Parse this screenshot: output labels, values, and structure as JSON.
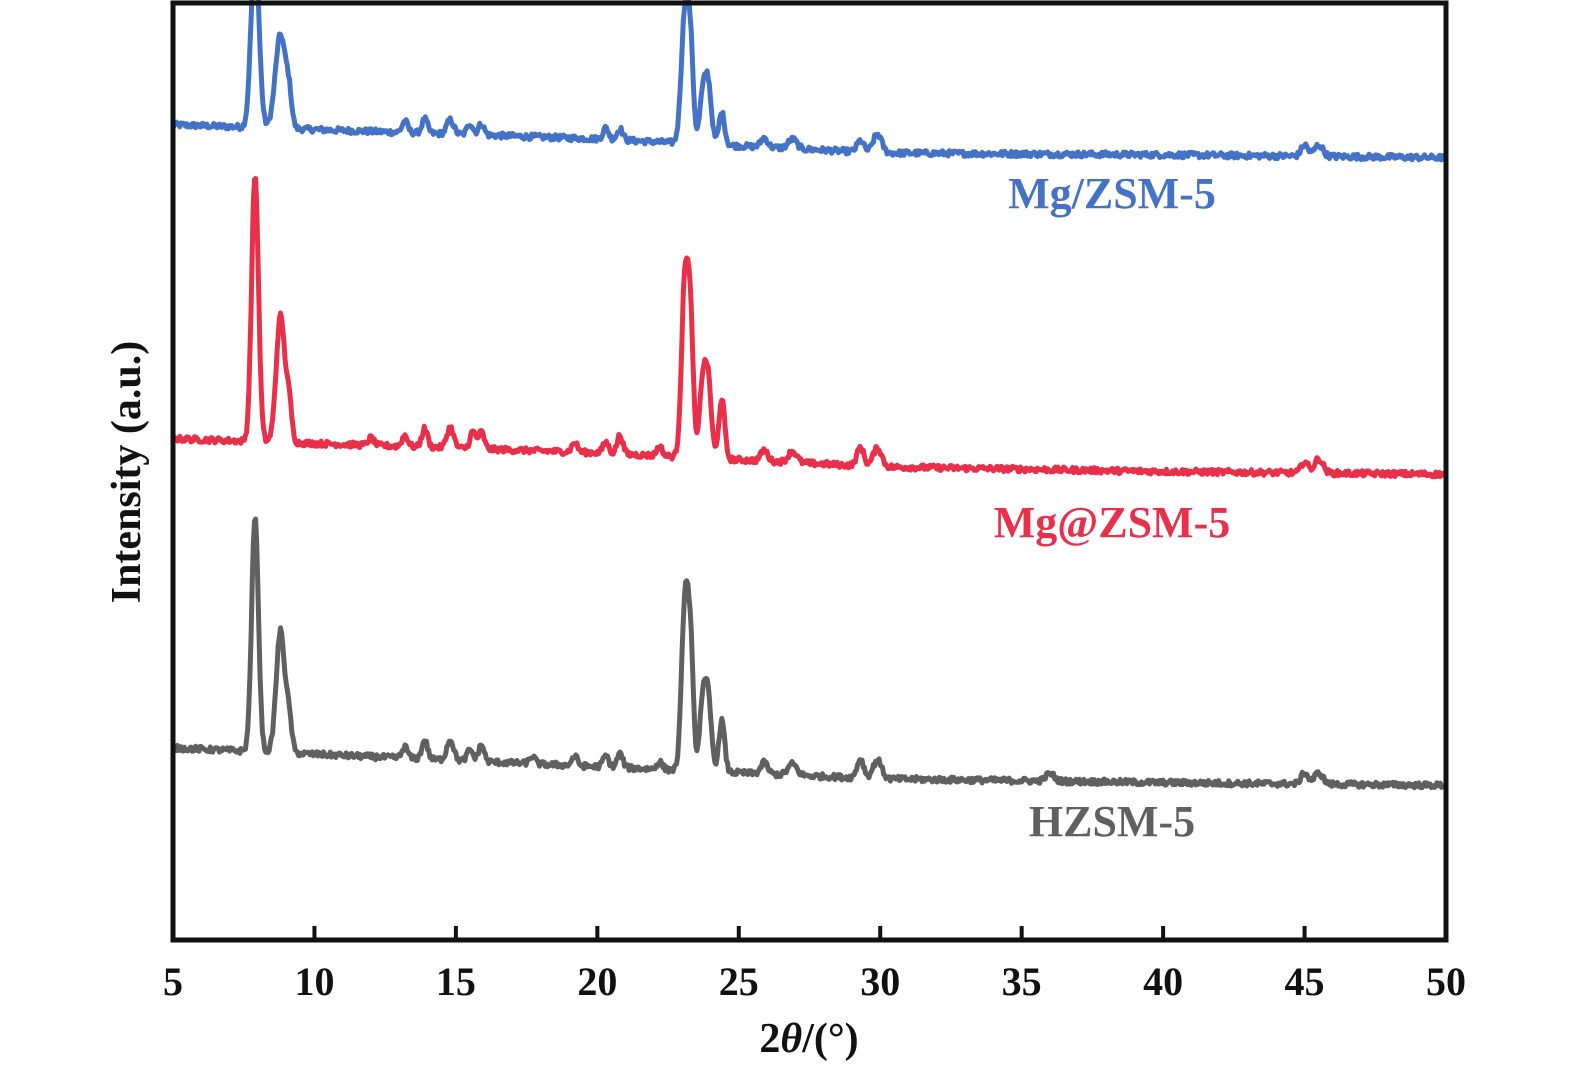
{
  "chart_data": {
    "type": "line",
    "title": "",
    "xlabel_prefix": "2",
    "xlabel_theta": "θ",
    "xlabel_suffix": "/(°)",
    "ylabel": "Intensity (a.u.)",
    "xlim": [
      5,
      50
    ],
    "xticks": [
      "5",
      "10",
      "15",
      "20",
      "25",
      "30",
      "35",
      "40",
      "45",
      "50"
    ],
    "yticks": [],
    "grid": false,
    "legend": "inline labels right of peaks",
    "series": [
      {
        "name": "Mg/ZSM-5",
        "color": "#4472c4",
        "baseline": [
          [
            5,
            0.87
          ],
          [
            20,
            0.855
          ],
          [
            30,
            0.84
          ],
          [
            40,
            0.838
          ],
          [
            50,
            0.835
          ]
        ],
        "peaks": [
          [
            7.9,
            0.19,
            0.14
          ],
          [
            8.8,
            0.1,
            0.18
          ],
          [
            9.1,
            0.03,
            0.1
          ],
          [
            13.2,
            0.012,
            0.1
          ],
          [
            13.9,
            0.015,
            0.1
          ],
          [
            14.8,
            0.015,
            0.12
          ],
          [
            15.5,
            0.012,
            0.1
          ],
          [
            15.9,
            0.012,
            0.1
          ],
          [
            20.3,
            0.012,
            0.1
          ],
          [
            20.8,
            0.012,
            0.1
          ],
          [
            23.1,
            0.14,
            0.13
          ],
          [
            23.3,
            0.085,
            0.1
          ],
          [
            23.7,
            0.04,
            0.1
          ],
          [
            23.9,
            0.07,
            0.12
          ],
          [
            24.4,
            0.035,
            0.1
          ],
          [
            25.9,
            0.01,
            0.12
          ],
          [
            26.9,
            0.01,
            0.15
          ],
          [
            29.3,
            0.012,
            0.12
          ],
          [
            29.9,
            0.02,
            0.15
          ],
          [
            45.0,
            0.012,
            0.12
          ],
          [
            45.5,
            0.012,
            0.15
          ]
        ]
      },
      {
        "name": "Mg@ZSM-5",
        "color": "#e8304a",
        "baseline": [
          [
            5,
            0.535
          ],
          [
            20,
            0.52
          ],
          [
            30,
            0.505
          ],
          [
            40,
            0.5
          ],
          [
            50,
            0.497
          ]
        ],
        "peaks": [
          [
            7.9,
            0.285,
            0.12
          ],
          [
            8.8,
            0.135,
            0.15
          ],
          [
            9.1,
            0.04,
            0.1
          ],
          [
            12.0,
            0.008,
            0.1
          ],
          [
            13.2,
            0.012,
            0.1
          ],
          [
            13.9,
            0.02,
            0.1
          ],
          [
            14.8,
            0.022,
            0.12
          ],
          [
            15.6,
            0.018,
            0.1
          ],
          [
            15.9,
            0.018,
            0.1
          ],
          [
            19.2,
            0.01,
            0.1
          ],
          [
            20.3,
            0.012,
            0.1
          ],
          [
            20.8,
            0.02,
            0.1
          ],
          [
            22.2,
            0.01,
            0.1
          ],
          [
            23.1,
            0.19,
            0.12
          ],
          [
            23.3,
            0.125,
            0.1
          ],
          [
            23.7,
            0.065,
            0.1
          ],
          [
            23.9,
            0.09,
            0.12
          ],
          [
            24.4,
            0.065,
            0.1
          ],
          [
            25.9,
            0.012,
            0.12
          ],
          [
            26.9,
            0.012,
            0.15
          ],
          [
            29.3,
            0.02,
            0.12
          ],
          [
            29.9,
            0.02,
            0.15
          ],
          [
            45.0,
            0.012,
            0.12
          ],
          [
            45.5,
            0.015,
            0.15
          ]
        ]
      },
      {
        "name": "HZSM-5",
        "color": "#606060",
        "baseline": [
          [
            5,
            0.205
          ],
          [
            20,
            0.185
          ],
          [
            30,
            0.172
          ],
          [
            40,
            0.168
          ],
          [
            50,
            0.165
          ]
        ],
        "peaks": [
          [
            7.9,
            0.25,
            0.12
          ],
          [
            8.8,
            0.13,
            0.15
          ],
          [
            9.1,
            0.035,
            0.1
          ],
          [
            13.2,
            0.012,
            0.1
          ],
          [
            13.9,
            0.02,
            0.1
          ],
          [
            14.8,
            0.022,
            0.12
          ],
          [
            15.5,
            0.012,
            0.1
          ],
          [
            15.9,
            0.018,
            0.1
          ],
          [
            17.7,
            0.008,
            0.1
          ],
          [
            19.2,
            0.01,
            0.1
          ],
          [
            20.3,
            0.012,
            0.1
          ],
          [
            20.8,
            0.015,
            0.1
          ],
          [
            22.2,
            0.008,
            0.1
          ],
          [
            23.1,
            0.18,
            0.12
          ],
          [
            23.3,
            0.115,
            0.1
          ],
          [
            23.7,
            0.06,
            0.1
          ],
          [
            23.9,
            0.085,
            0.12
          ],
          [
            24.4,
            0.055,
            0.1
          ],
          [
            25.9,
            0.012,
            0.12
          ],
          [
            26.9,
            0.012,
            0.15
          ],
          [
            29.3,
            0.02,
            0.12
          ],
          [
            29.9,
            0.02,
            0.15
          ],
          [
            36.0,
            0.008,
            0.15
          ],
          [
            45.0,
            0.012,
            0.12
          ],
          [
            45.5,
            0.012,
            0.15
          ]
        ]
      }
    ]
  }
}
